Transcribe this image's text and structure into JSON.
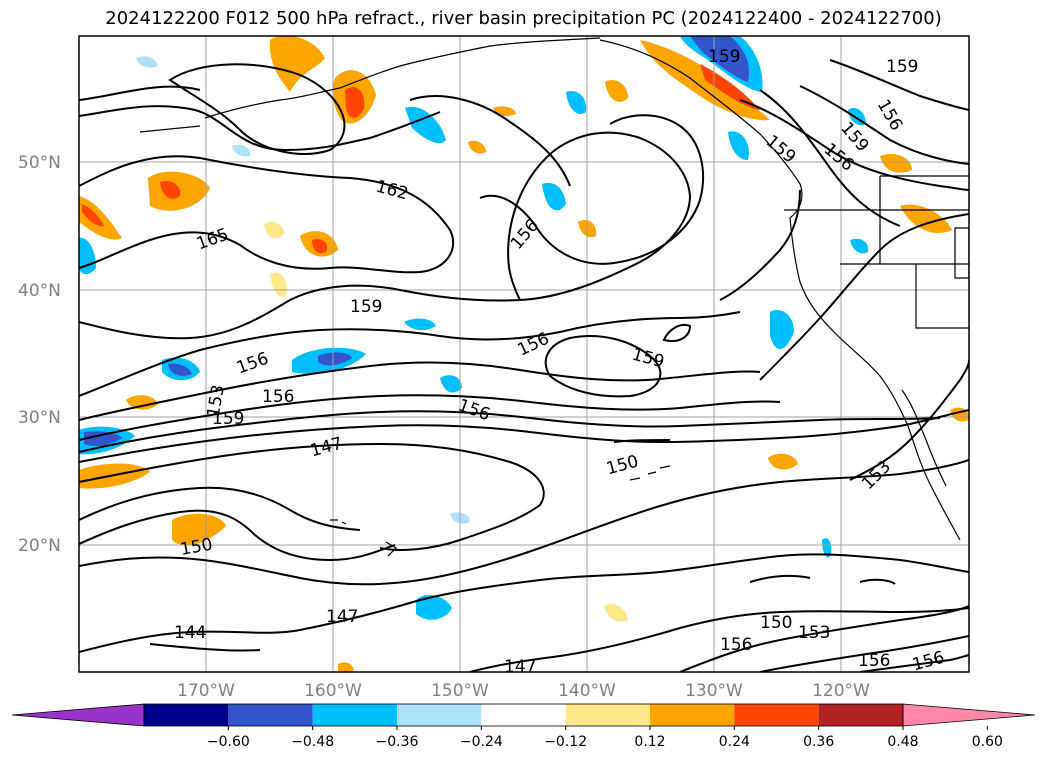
{
  "title": "2024122200 F012 500 hPa refract., river basin precipitation PC (2024122400 - 2024122700)",
  "lat_labels": [
    "50°N",
    "40°N",
    "30°N",
    "20°N"
  ],
  "lon_labels": [
    "170°W",
    "160°W",
    "150°W",
    "140°W",
    "130°W",
    "120°W"
  ],
  "contour_labels": [
    "159",
    "159",
    "156",
    "159",
    "159",
    "156",
    "162",
    "165",
    "156",
    "159",
    "156",
    "153",
    "156",
    "159",
    "156",
    "159",
    "147",
    "156",
    "150",
    "153",
    "150",
    "144",
    "147",
    "147",
    "150",
    "153",
    "156",
    "156",
    "156"
  ],
  "colorbar": {
    "ticks": [
      "−0.60",
      "−0.48",
      "−0.36",
      "−0.24",
      "−0.12",
      "0.12",
      "0.24",
      "0.36",
      "0.48",
      "0.60"
    ],
    "colors": [
      "#9933cc",
      "#00008b",
      "#3355cc",
      "#00bfff",
      "#aee1fa",
      "#ffffff",
      "#ffe88a",
      "#ffa500",
      "#ff4500",
      "#b22222",
      "#ff88aa"
    ]
  }
}
